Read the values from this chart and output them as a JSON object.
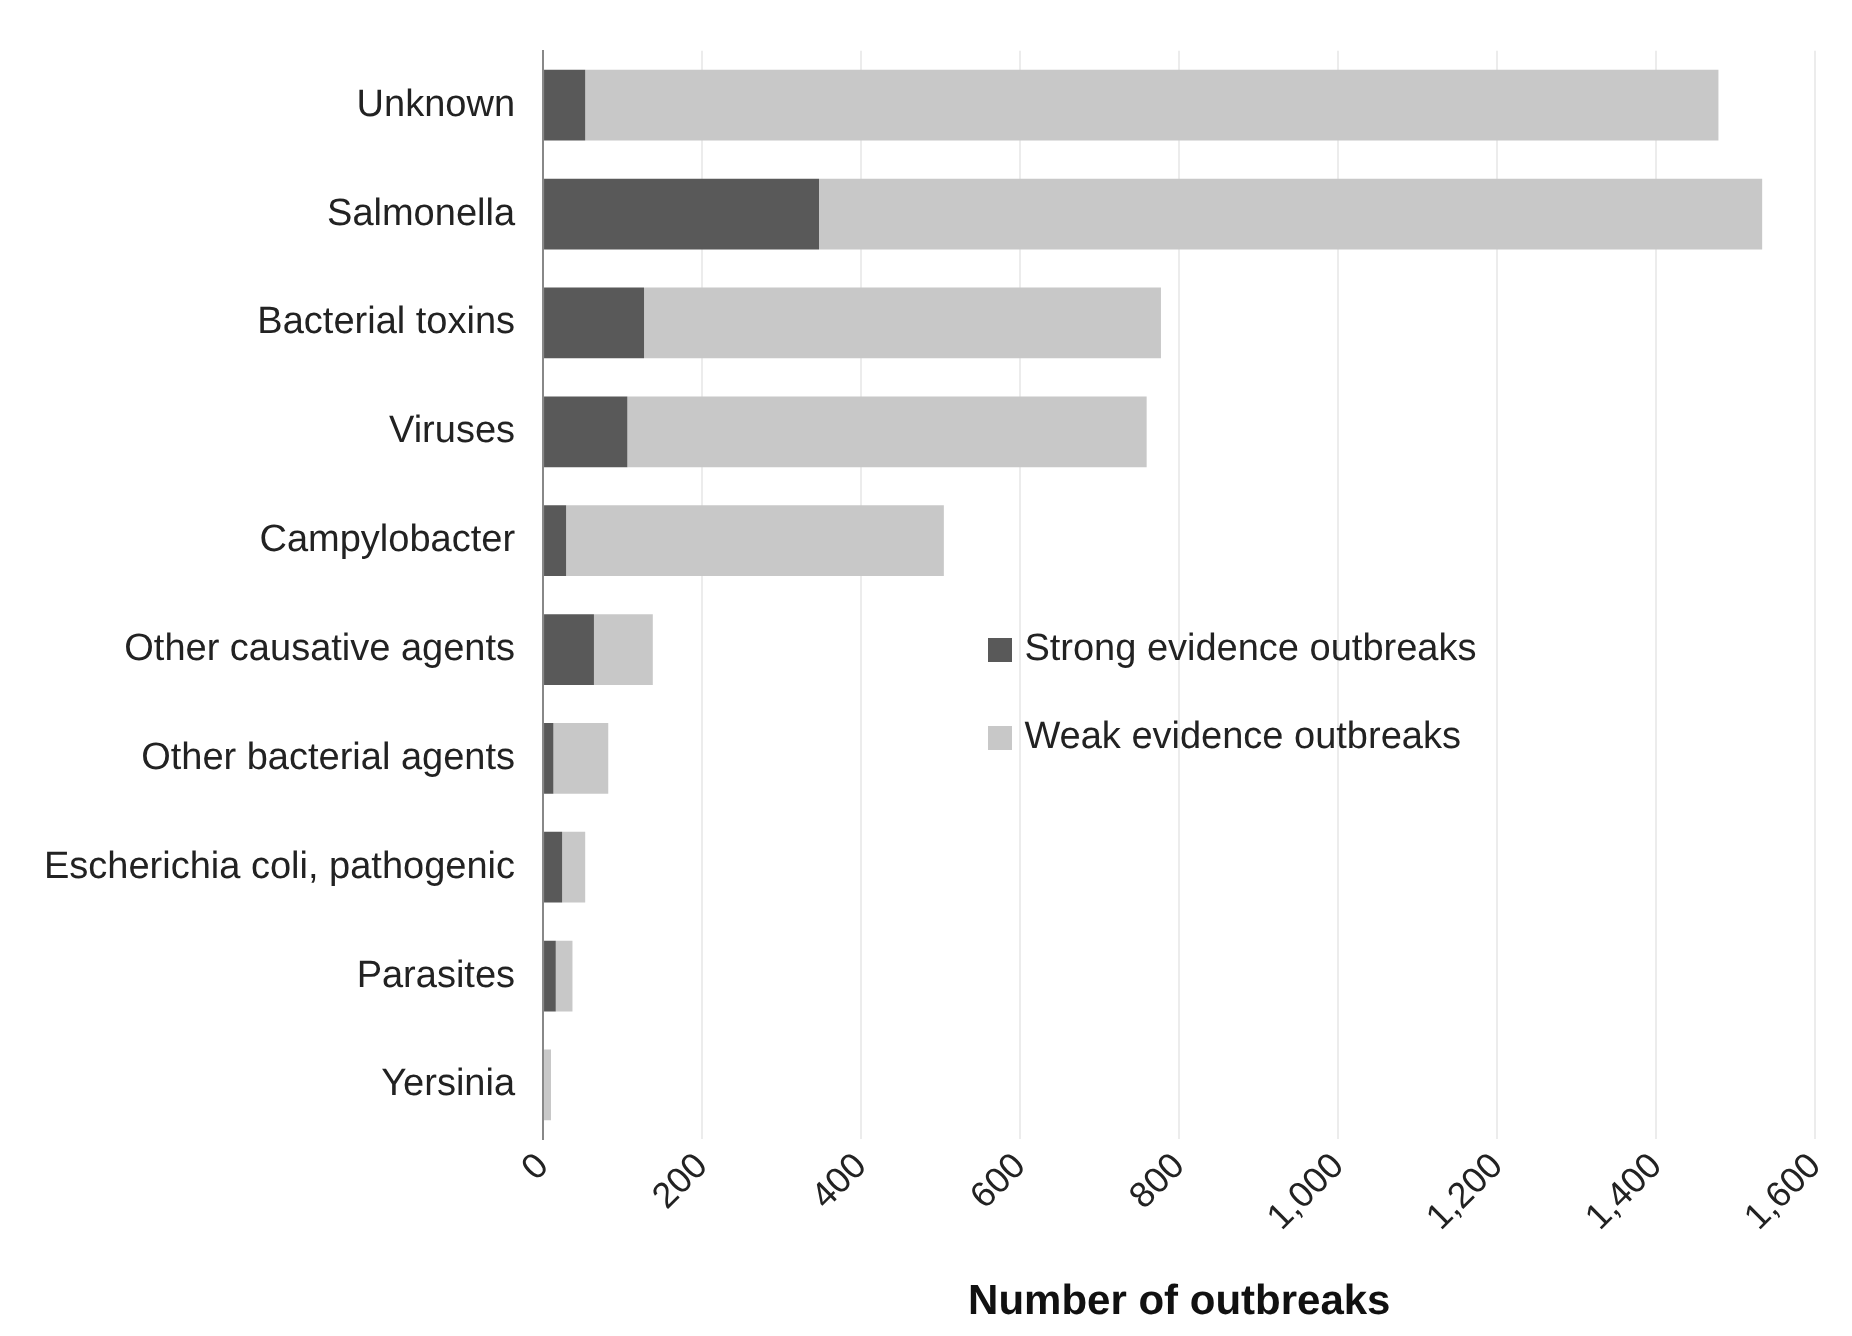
{
  "chart_data": {
    "type": "bar",
    "orientation": "horizontal",
    "stacked": true,
    "xlabel": "Number of outbreaks",
    "categories": [
      "Unknown",
      "Salmonella",
      "Bacterial toxins",
      "Viruses",
      "Campylobacter",
      "Other causative agents",
      "Other bacterial agents",
      "Escherichia coli, pathogenic",
      "Parasites",
      "Yersinia"
    ],
    "series": [
      {
        "name": "Strong evidence outbreaks",
        "color": "#595959",
        "values": [
          53,
          347,
          127,
          106,
          29,
          64,
          13,
          24,
          16,
          null
        ]
      },
      {
        "name": "Weak evidence outbreaks",
        "color": "#c8c8c8",
        "values": [
          1425,
          1186,
          650,
          653,
          475,
          74,
          69,
          29,
          21,
          10
        ]
      }
    ],
    "xlim": [
      0,
      1600
    ],
    "xticks": [
      {
        "value": 0,
        "label": "0"
      },
      {
        "value": 200,
        "label": "200"
      },
      {
        "value": 400,
        "label": "400"
      },
      {
        "value": 600,
        "label": "600"
      },
      {
        "value": 800,
        "label": "800"
      },
      {
        "value": 1000,
        "label": "1,000"
      },
      {
        "value": 1200,
        "label": "1,200"
      },
      {
        "value": 1400,
        "label": "1,400"
      },
      {
        "value": 1600,
        "label": "1,600"
      }
    ],
    "grid": "x",
    "legend": "right"
  }
}
